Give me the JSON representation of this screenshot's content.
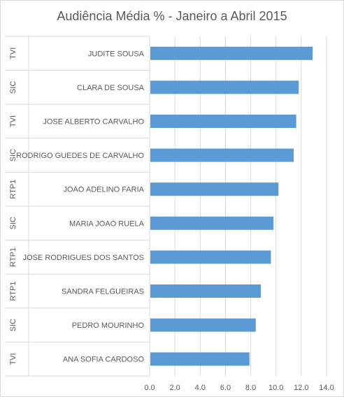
{
  "chart_data": {
    "type": "bar",
    "orientation": "horizontal",
    "title": "Audiência Média % - Janeiro a Abril 2015",
    "xlabel": "",
    "ylabel": "",
    "xlim": [
      0,
      14
    ],
    "x_ticks": [
      "0.0",
      "2.0",
      "4.0",
      "6.0",
      "8.0",
      "10.0",
      "12.0",
      "14.0"
    ],
    "grid": true,
    "legend": "none",
    "bar_color": "#5b9bd5",
    "grid_color": "#d9d9d9",
    "categories": [
      {
        "channel": "TVI",
        "name": "JUDITE SOUSA",
        "value": 12.9
      },
      {
        "channel": "SIC",
        "name": "CLARA DE SOUSA",
        "value": 11.8
      },
      {
        "channel": "TVI",
        "name": "JOSE ALBERTO CARVALHO",
        "value": 11.6
      },
      {
        "channel": "SIC",
        "name": "RODRIGO GUEDES DE CARVALHO",
        "value": 11.4
      },
      {
        "channel": "RTP1",
        "name": "JOAO ADELINO FARIA",
        "value": 10.2
      },
      {
        "channel": "SIC",
        "name": "MARIA JOAO RUELA",
        "value": 9.8
      },
      {
        "channel": "RTP1",
        "name": "JOSE RODRIGUES DOS SANTOS",
        "value": 9.6
      },
      {
        "channel": "RTP1",
        "name": "SANDRA FELGUEIRAS",
        "value": 8.8
      },
      {
        "channel": "SIC",
        "name": "PEDRO MOURINHO",
        "value": 8.4
      },
      {
        "channel": "TVI",
        "name": "ANA SOFIA CARDOSO",
        "value": 7.9
      }
    ]
  }
}
